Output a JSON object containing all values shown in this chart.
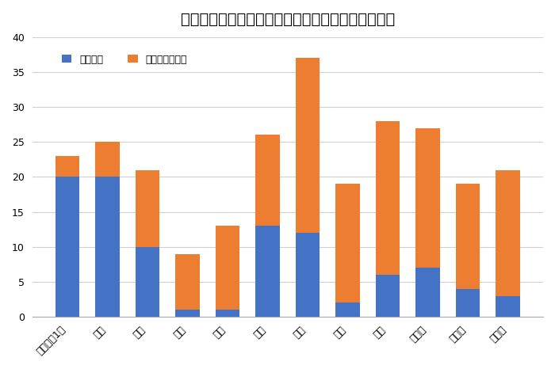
{
  "title": "対面調停とオンライン調停の実施回数（令和２年）",
  "categories": [
    "令和２年1月",
    "２月",
    "３月",
    "４月",
    "５月",
    "６月",
    "７月",
    "８月",
    "９月",
    "１０月",
    "１１月",
    "１２月"
  ],
  "face_to_face": [
    20,
    20,
    10,
    1,
    1,
    13,
    12,
    2,
    6,
    7,
    4,
    3
  ],
  "online": [
    3,
    5,
    11,
    8,
    12,
    13,
    25,
    17,
    22,
    20,
    15,
    18
  ],
  "face_color": "#4472C4",
  "online_color": "#ED7D31",
  "legend_face": "対面調停",
  "legend_online": "オンライン調停",
  "ylim": [
    0,
    40
  ],
  "yticks": [
    0,
    5,
    10,
    15,
    20,
    25,
    30,
    35,
    40
  ],
  "background_color": "#ffffff",
  "grid_color": "#d0d0d0",
  "title_fontsize": 14
}
